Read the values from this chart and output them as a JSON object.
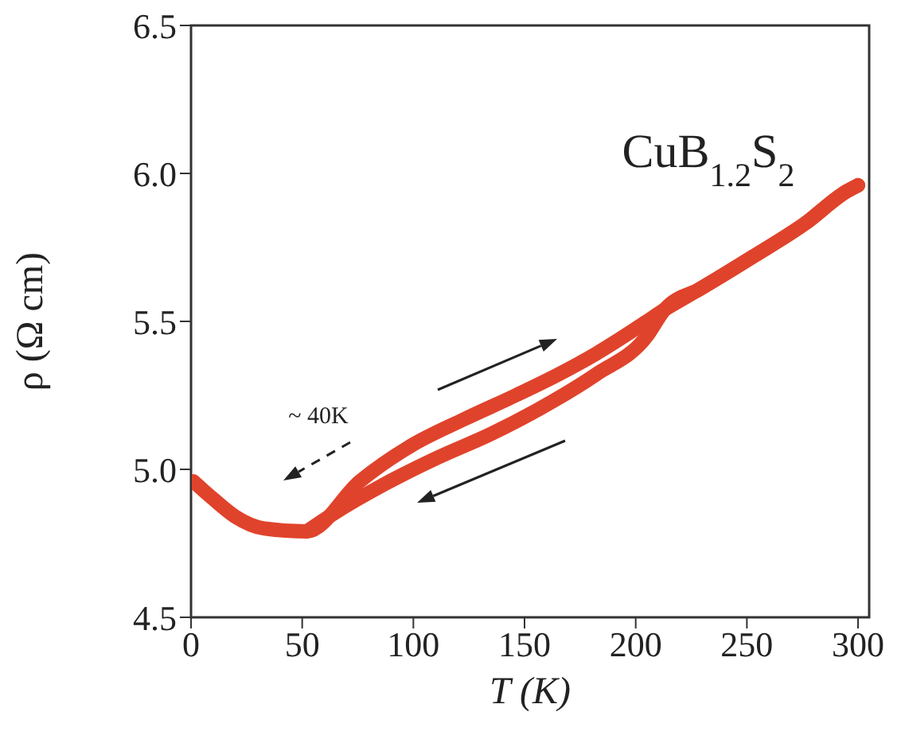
{
  "chart_data": {
    "type": "line",
    "title": "CuB$_{1.2}$S$_{2}$",
    "xlabel": "T (K)",
    "ylabel": "ρ (Ω cm)",
    "annotations": [
      "~ 40K"
    ],
    "series": [
      {
        "color": "#e0432b",
        "x": [
          1,
          10,
          20,
          33,
          52,
          76,
          99,
          123,
          146,
          165,
          182,
          205,
          213,
          229,
          253,
          276,
          295,
          300
        ],
        "values": [
          4.96,
          4.9,
          4.84,
          4.8,
          4.79,
          4.96,
          5.08,
          5.17,
          5.25,
          5.32,
          5.39,
          5.5,
          5.54,
          5.61,
          5.72,
          5.83,
          5.94,
          5.96
        ]
      },
      {
        "color": "#e0432b",
        "x": [
          300,
          295,
          276,
          253,
          229,
          213,
          205,
          182,
          158,
          135,
          111,
          87,
          64,
          52
        ],
        "values": [
          5.96,
          5.94,
          5.83,
          5.72,
          5.61,
          5.54,
          5.45,
          5.32,
          5.21,
          5.12,
          5.04,
          4.95,
          4.85,
          4.79
        ]
      }
    ],
    "xlim": [
      0,
      305
    ],
    "xticks": [
      0,
      50,
      100,
      150,
      200,
      250,
      300
    ],
    "ylim": [
      4.5,
      6.5
    ],
    "yticks": [
      4.5,
      {
        "value": 5,
        "label": "5.0"
      },
      5.5,
      {
        "value": 6,
        "label": "6.0"
      },
      6.5
    ],
    "grid": false,
    "legend": false,
    "line_style": "solid"
  }
}
